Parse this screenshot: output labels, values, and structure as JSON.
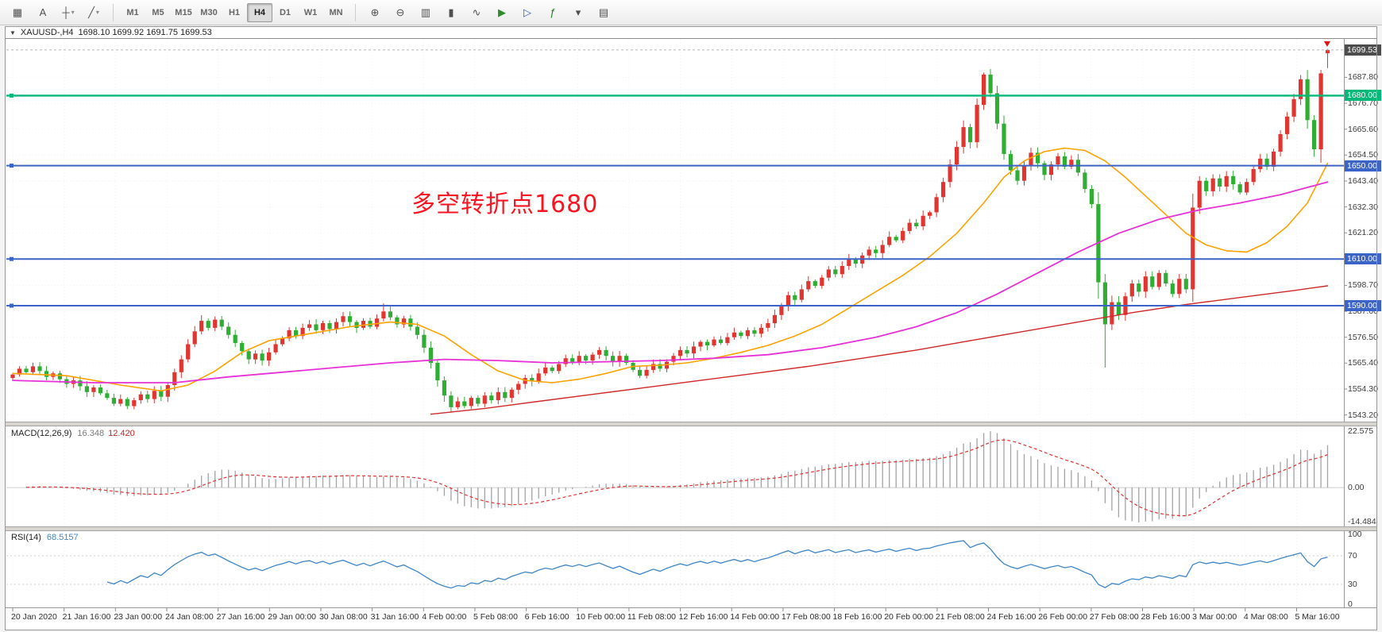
{
  "toolbar": {
    "left_icons": [
      {
        "name": "tick-grid-icon",
        "glyph": "▦"
      },
      {
        "name": "text-tool-icon",
        "glyph": "A"
      },
      {
        "name": "crosshair-icon",
        "glyph": "┼",
        "dropdown": true
      },
      {
        "name": "line-studies-icon",
        "glyph": "╱",
        "dropdown": true
      }
    ],
    "timeframes": [
      "M1",
      "M5",
      "M15",
      "M30",
      "H1",
      "H4",
      "D1",
      "W1",
      "MN"
    ],
    "active_timeframe": "H4",
    "right_icons": [
      {
        "name": "zoom-in-icon",
        "glyph": "⊕"
      },
      {
        "name": "zoom-out-icon",
        "glyph": "⊖"
      },
      {
        "name": "bar-chart-icon",
        "glyph": "▥"
      },
      {
        "name": "candlestick-icon",
        "glyph": "▮"
      },
      {
        "name": "line-chart-icon",
        "glyph": "∿"
      },
      {
        "name": "auto-scroll-icon",
        "glyph": "▶",
        "color": "#2e8b2e"
      },
      {
        "name": "chart-shift-icon",
        "glyph": "▷",
        "color": "#2f5fbf"
      },
      {
        "name": "indicators-icon",
        "glyph": "ƒ",
        "color": "#1f7a1f"
      },
      {
        "name": "periods-dropdown-icon",
        "glyph": "▾"
      },
      {
        "name": "templates-icon",
        "glyph": "▤"
      }
    ]
  },
  "chart": {
    "symbol_tf": "XAUUSD-,H4",
    "ohlc": "1698.10 1699.92 1691.75 1699.53",
    "annotation": {
      "text": "多空转折点1680",
      "color": "#fb1420"
    },
    "price_axis": {
      "ticks": [
        "1687.80",
        "1676.70",
        "1665.60",
        "1654.50",
        "1643.40",
        "1632.30",
        "1621.20",
        "1598.70",
        "1587.60",
        "1576.50",
        "1565.40",
        "1554.30",
        "1543.20"
      ],
      "current_label": "1699.53",
      "current_bg": "#4d4d4d"
    },
    "time_axis": {
      "labels": [
        "20 Jan 2020",
        "21 Jan 16:00",
        "23 Jan 00:00",
        "24 Jan 08:00",
        "27 Jan 16:00",
        "29 Jan 00:00",
        "30 Jan 08:00",
        "31 Jan 16:00",
        "4 Feb 00:00",
        "5 Feb 08:00",
        "6 Feb 16:00",
        "10 Feb 00:00",
        "11 Feb 08:00",
        "12 Feb 16:00",
        "14 Feb 00:00",
        "17 Feb 08:00",
        "18 Feb 16:00",
        "20 Feb 00:00",
        "21 Feb 08:00",
        "24 Feb 16:00",
        "26 Feb 00:00",
        "27 Feb 08:00",
        "28 Feb 16:00",
        "3 Mar 00:00",
        "4 Mar 08:00",
        "5 Mar 16:00"
      ]
    }
  },
  "panes": {
    "macd": {
      "name": "MACD(12,26,9)",
      "main_value": "16.348",
      "signal_value": "12.420",
      "axis": [
        "22.575",
        "0.00",
        "-14.484"
      ]
    },
    "rsi": {
      "name": "RSI(14)",
      "value": "68.5157",
      "axis": [
        "100",
        "70",
        "30",
        "0"
      ]
    }
  },
  "chart_data": {
    "type": "candlestick",
    "symbol": "XAUUSD-",
    "timeframe": "H4",
    "colors": {
      "up": "#e13530",
      "down": "#2fae33"
    },
    "first_open": 1559.0,
    "closes": [
      1560.5,
      1563.0,
      1561.5,
      1564.0,
      1562.0,
      1559.5,
      1561.0,
      1558.5,
      1556.5,
      1558.0,
      1555.5,
      1553.0,
      1555.0,
      1552.5,
      1550.5,
      1548.0,
      1550.0,
      1547.0,
      1549.5,
      1552.0,
      1550.0,
      1553.5,
      1551.0,
      1556.0,
      1561.5,
      1567.0,
      1573.5,
      1579.0,
      1583.5,
      1580.5,
      1584.0,
      1581.0,
      1577.5,
      1574.0,
      1570.5,
      1567.0,
      1569.5,
      1566.5,
      1570.0,
      1573.5,
      1576.0,
      1579.5,
      1577.0,
      1580.5,
      1582.0,
      1579.5,
      1582.5,
      1580.0,
      1583.0,
      1585.5,
      1583.0,
      1580.5,
      1583.5,
      1581.0,
      1584.5,
      1587.5,
      1585.0,
      1582.0,
      1584.5,
      1581.0,
      1577.5,
      1572.0,
      1565.5,
      1558.0,
      1551.5,
      1546.5,
      1549.0,
      1547.0,
      1550.5,
      1548.0,
      1551.5,
      1549.5,
      1553.0,
      1550.5,
      1554.0,
      1556.5,
      1559.0,
      1557.5,
      1561.0,
      1563.5,
      1562.0,
      1565.0,
      1567.5,
      1566.0,
      1568.5,
      1566.5,
      1569.0,
      1571.0,
      1568.5,
      1566.0,
      1568.5,
      1565.5,
      1562.5,
      1560.0,
      1562.5,
      1565.0,
      1563.0,
      1566.0,
      1568.5,
      1571.0,
      1569.5,
      1572.5,
      1574.5,
      1573.0,
      1575.5,
      1574.0,
      1576.5,
      1578.5,
      1577.0,
      1579.5,
      1578.0,
      1580.5,
      1582.5,
      1586.0,
      1590.0,
      1594.5,
      1592.5,
      1597.0,
      1600.5,
      1598.5,
      1602.0,
      1605.5,
      1603.5,
      1607.0,
      1610.0,
      1608.0,
      1611.5,
      1614.0,
      1612.5,
      1616.0,
      1619.5,
      1618.0,
      1622.0,
      1625.5,
      1624.0,
      1628.5,
      1630.0,
      1636.5,
      1643.0,
      1650.5,
      1658.0,
      1666.5,
      1660.0,
      1676.0,
      1689.0,
      1681.0,
      1668.0,
      1655.0,
      1648.0,
      1643.5,
      1650.0,
      1655.5,
      1651.0,
      1646.0,
      1650.5,
      1654.0,
      1649.5,
      1652.5,
      1647.0,
      1640.0,
      1633.5,
      1600.0,
      1582.0,
      1591.5,
      1586.0,
      1594.0,
      1599.5,
      1596.0,
      1602.5,
      1598.0,
      1604.0,
      1599.5,
      1595.0,
      1601.5,
      1597.0,
      1632.0,
      1643.5,
      1639.0,
      1644.5,
      1641.0,
      1645.5,
      1642.0,
      1638.5,
      1643.0,
      1648.5,
      1653.0,
      1649.5,
      1656.0,
      1663.5,
      1671.0,
      1678.5,
      1687.0,
      1669.5,
      1657.0,
      1689.5,
      1699.53
    ],
    "last_candle": {
      "open": 1698.1,
      "high": 1699.92,
      "low": 1691.75,
      "close": 1699.53
    },
    "wick_overrides": {
      "55": {
        "h": 1591.0
      },
      "65": {
        "l": 1544.2
      },
      "144": {
        "h": 1689.9
      },
      "161": {
        "l": 1593.0
      },
      "162": {
        "l": 1563.5
      },
      "191": {
        "h": 1688.8
      },
      "194": {
        "h": 1691.0
      }
    },
    "current_price": 1699.53,
    "horizontal_lines": [
      {
        "price": 1680.0,
        "label": "1680.00",
        "color": "#00b878",
        "width": 2.4
      },
      {
        "price": 1650.0,
        "label": "1650.00",
        "color": "#3c64c8",
        "width": 2
      },
      {
        "price": 1610.0,
        "label": "1610.00",
        "color": "#3c64c8",
        "width": 2
      },
      {
        "price": 1590.0,
        "label": "1590.00",
        "color": "#3c64c8",
        "width": 2
      }
    ],
    "moving_averages": [
      {
        "name": "ma-fast-orange",
        "color": "#ffa200",
        "width": 1.6,
        "points": [
          [
            0,
            1561
          ],
          [
            8,
            1560
          ],
          [
            16,
            1556
          ],
          [
            22,
            1553.5
          ],
          [
            26,
            1556
          ],
          [
            30,
            1562
          ],
          [
            34,
            1570
          ],
          [
            38,
            1575
          ],
          [
            44,
            1578
          ],
          [
            50,
            1581
          ],
          [
            56,
            1583
          ],
          [
            60,
            1582
          ],
          [
            64,
            1577
          ],
          [
            68,
            1569
          ],
          [
            72,
            1562
          ],
          [
            76,
            1558
          ],
          [
            80,
            1557
          ],
          [
            84,
            1558.5
          ],
          [
            88,
            1561
          ],
          [
            92,
            1564
          ],
          [
            96,
            1564.5
          ],
          [
            100,
            1565.5
          ],
          [
            104,
            1567.5
          ],
          [
            108,
            1570
          ],
          [
            112,
            1573
          ],
          [
            116,
            1577
          ],
          [
            120,
            1582
          ],
          [
            124,
            1589
          ],
          [
            128,
            1596
          ],
          [
            132,
            1603
          ],
          [
            136,
            1611
          ],
          [
            140,
            1621
          ],
          [
            144,
            1634
          ],
          [
            147,
            1645
          ],
          [
            150,
            1652
          ],
          [
            153,
            1656
          ],
          [
            156,
            1657.5
          ],
          [
            159,
            1656.5
          ],
          [
            162,
            1652
          ],
          [
            165,
            1645
          ],
          [
            168,
            1637
          ],
          [
            171,
            1629
          ],
          [
            174,
            1621
          ],
          [
            177,
            1616
          ],
          [
            180,
            1613.5
          ],
          [
            183,
            1613
          ],
          [
            186,
            1617
          ],
          [
            189,
            1624
          ],
          [
            192,
            1634
          ],
          [
            195,
            1651
          ]
        ]
      },
      {
        "name": "ma-mid-magenta",
        "color": "#e830d8",
        "width": 1.8,
        "points": [
          [
            0,
            1558
          ],
          [
            12,
            1557
          ],
          [
            24,
            1557
          ],
          [
            32,
            1559.5
          ],
          [
            40,
            1561.5
          ],
          [
            48,
            1563.5
          ],
          [
            56,
            1565.5
          ],
          [
            64,
            1567
          ],
          [
            72,
            1566.5
          ],
          [
            80,
            1565.5
          ],
          [
            88,
            1566
          ],
          [
            96,
            1566.5
          ],
          [
            104,
            1567.5
          ],
          [
            112,
            1569
          ],
          [
            120,
            1572
          ],
          [
            128,
            1576.5
          ],
          [
            134,
            1581
          ],
          [
            140,
            1587
          ],
          [
            146,
            1595
          ],
          [
            152,
            1604
          ],
          [
            158,
            1613
          ],
          [
            164,
            1621
          ],
          [
            170,
            1627
          ],
          [
            176,
            1631
          ],
          [
            182,
            1634
          ],
          [
            188,
            1637.5
          ],
          [
            195,
            1643
          ]
        ]
      },
      {
        "name": "ma-slow-red",
        "color": "#d02828",
        "width": 1.4,
        "points": [
          [
            62,
            1543.5
          ],
          [
            70,
            1546
          ],
          [
            78,
            1549
          ],
          [
            86,
            1552
          ],
          [
            94,
            1555
          ],
          [
            102,
            1558
          ],
          [
            110,
            1561
          ],
          [
            118,
            1564
          ],
          [
            126,
            1567.5
          ],
          [
            134,
            1571
          ],
          [
            142,
            1575
          ],
          [
            150,
            1579
          ],
          [
            158,
            1583
          ],
          [
            166,
            1587
          ],
          [
            174,
            1590.5
          ],
          [
            182,
            1593.5
          ],
          [
            190,
            1596.5
          ],
          [
            195,
            1598.5
          ]
        ]
      }
    ],
    "indicators": [
      {
        "name": "MACD",
        "params": "12,26,9"
      },
      {
        "name": "RSI",
        "params": "14"
      }
    ],
    "y_axis": {
      "min": 1543.2,
      "tick_interval": 11.1
    }
  }
}
